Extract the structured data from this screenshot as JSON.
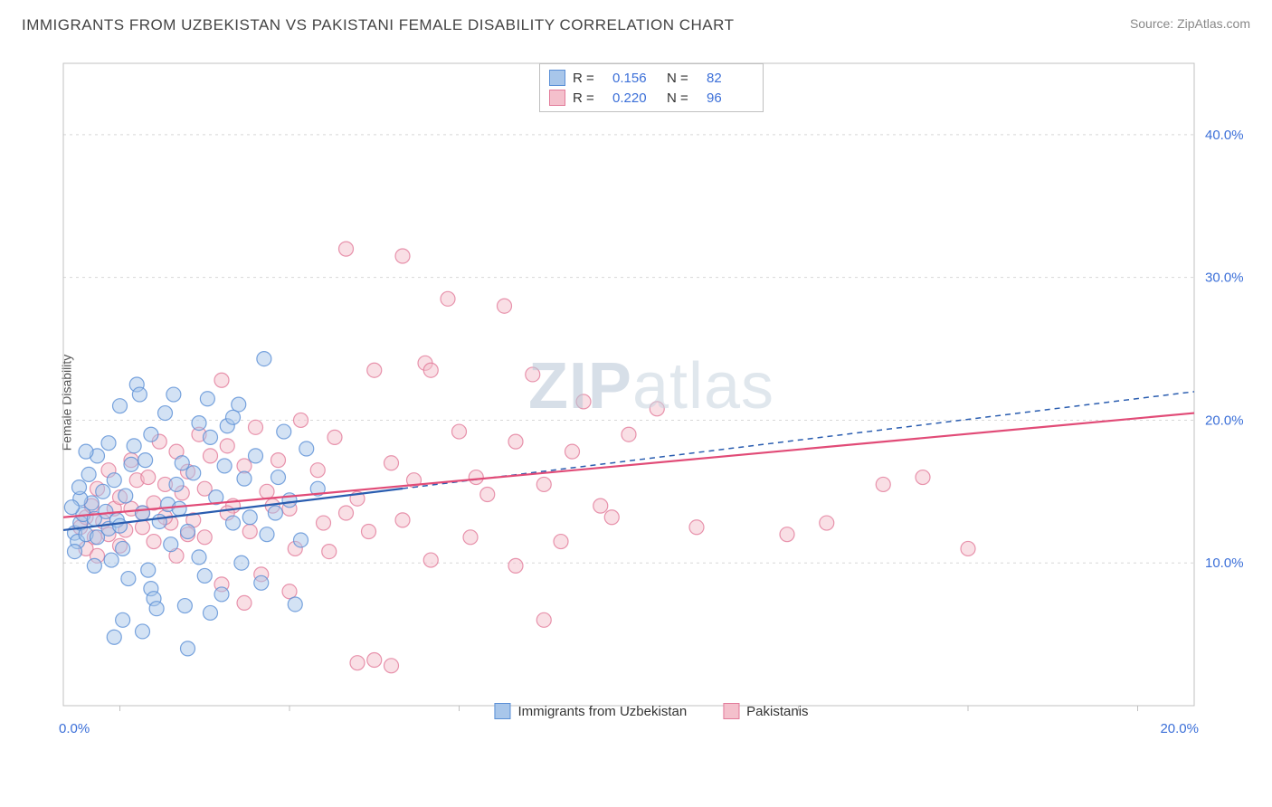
{
  "title": "IMMIGRANTS FROM UZBEKISTAN VS PAKISTANI FEMALE DISABILITY CORRELATION CHART",
  "source": "Source: ZipAtlas.com",
  "ylabel": "Female Disability",
  "watermark_a": "ZIP",
  "watermark_b": "atlas",
  "chart": {
    "type": "scatter",
    "xlim": [
      0,
      20
    ],
    "ylim": [
      0,
      45
    ],
    "x_ticks": [
      0,
      20
    ],
    "x_tick_labels": [
      "0.0%",
      "20.0%"
    ],
    "y_ticks": [
      10,
      20,
      30,
      40
    ],
    "y_tick_labels": [
      "10.0%",
      "20.0%",
      "30.0%",
      "40.0%"
    ],
    "grid_color": "#d8d8d8",
    "axis_color": "#c0c0c0",
    "background_color": "#ffffff",
    "tick_label_color": "#3b6fd8",
    "marker_radius": 8,
    "marker_opacity": 0.5
  },
  "series": [
    {
      "name": "Immigrants from Uzbekistan",
      "color_fill": "#a8c6ea",
      "color_stroke": "#5a8fd6",
      "r_value": "0.156",
      "n_value": "82",
      "trend": {
        "x1": 0,
        "y1": 12.3,
        "x2": 6.0,
        "y2": 15.0,
        "x2_ext": 20,
        "y2_ext": 22.0,
        "solid_until": 6.0,
        "color": "#2a5db0",
        "width": 2.2
      },
      "points": [
        [
          0.2,
          12.1
        ],
        [
          0.3,
          12.8
        ],
        [
          0.25,
          11.5
        ],
        [
          0.35,
          13.4
        ],
        [
          0.4,
          12.0
        ],
        [
          0.5,
          14.2
        ],
        [
          0.55,
          13.1
        ],
        [
          0.6,
          11.8
        ],
        [
          0.7,
          15.0
        ],
        [
          0.75,
          13.6
        ],
        [
          0.8,
          12.4
        ],
        [
          0.85,
          10.2
        ],
        [
          0.9,
          15.8
        ],
        [
          0.95,
          13.0
        ],
        [
          1.0,
          12.6
        ],
        [
          1.05,
          11.0
        ],
        [
          1.1,
          14.7
        ],
        [
          1.2,
          16.9
        ],
        [
          1.25,
          18.2
        ],
        [
          1.3,
          22.5
        ],
        [
          1.35,
          21.8
        ],
        [
          1.4,
          13.5
        ],
        [
          1.5,
          9.5
        ],
        [
          1.55,
          8.2
        ],
        [
          1.6,
          7.5
        ],
        [
          1.7,
          12.9
        ],
        [
          1.8,
          20.5
        ],
        [
          1.85,
          14.1
        ],
        [
          1.9,
          11.3
        ],
        [
          2.0,
          15.5
        ],
        [
          2.05,
          13.8
        ],
        [
          2.1,
          17.0
        ],
        [
          2.2,
          12.2
        ],
        [
          2.3,
          16.3
        ],
        [
          2.4,
          10.4
        ],
        [
          2.5,
          9.1
        ],
        [
          2.6,
          18.8
        ],
        [
          2.7,
          14.6
        ],
        [
          2.8,
          7.8
        ],
        [
          2.9,
          19.6
        ],
        [
          3.0,
          12.8
        ],
        [
          3.1,
          21.1
        ],
        [
          3.2,
          15.9
        ],
        [
          3.3,
          13.2
        ],
        [
          3.4,
          17.5
        ],
        [
          3.5,
          8.6
        ],
        [
          3.55,
          24.3
        ],
        [
          3.6,
          12.0
        ],
        [
          3.8,
          16.0
        ],
        [
          3.9,
          19.2
        ],
        [
          4.0,
          14.4
        ],
        [
          4.1,
          7.1
        ],
        [
          4.2,
          11.6
        ],
        [
          4.3,
          18.0
        ],
        [
          4.5,
          15.2
        ],
        [
          0.9,
          4.8
        ],
        [
          1.4,
          5.2
        ],
        [
          2.2,
          4.0
        ],
        [
          2.6,
          6.5
        ],
        [
          3.0,
          20.2
        ],
        [
          1.0,
          21.0
        ],
        [
          0.6,
          17.5
        ],
        [
          2.4,
          19.8
        ],
        [
          0.3,
          14.5
        ],
        [
          0.45,
          16.2
        ],
        [
          1.65,
          6.8
        ],
        [
          1.15,
          8.9
        ],
        [
          0.2,
          10.8
        ],
        [
          0.15,
          13.9
        ],
        [
          0.28,
          15.3
        ],
        [
          0.8,
          18.4
        ],
        [
          1.55,
          19.0
        ],
        [
          2.85,
          16.8
        ],
        [
          3.15,
          10.0
        ],
        [
          3.75,
          13.5
        ],
        [
          1.95,
          21.8
        ],
        [
          2.15,
          7.0
        ],
        [
          0.55,
          9.8
        ],
        [
          1.05,
          6.0
        ],
        [
          0.4,
          17.8
        ],
        [
          2.55,
          21.5
        ],
        [
          1.45,
          17.2
        ]
      ]
    },
    {
      "name": "Pakistanis",
      "color_fill": "#f4c0cc",
      "color_stroke": "#e27b9a",
      "r_value": "0.220",
      "n_value": "96",
      "trend": {
        "x1": 0,
        "y1": 13.2,
        "x2": 20,
        "y2": 20.5,
        "color": "#e14b77",
        "width": 2.2
      },
      "points": [
        [
          0.3,
          12.5
        ],
        [
          0.4,
          13.2
        ],
        [
          0.5,
          14.0
        ],
        [
          0.55,
          11.8
        ],
        [
          0.6,
          15.2
        ],
        [
          0.7,
          12.9
        ],
        [
          0.8,
          16.5
        ],
        [
          0.9,
          13.8
        ],
        [
          1.0,
          14.6
        ],
        [
          1.1,
          12.3
        ],
        [
          1.2,
          17.2
        ],
        [
          1.3,
          15.8
        ],
        [
          1.4,
          13.5
        ],
        [
          1.5,
          16.0
        ],
        [
          1.6,
          14.2
        ],
        [
          1.7,
          18.5
        ],
        [
          1.8,
          15.5
        ],
        [
          1.9,
          12.8
        ],
        [
          2.0,
          17.8
        ],
        [
          2.1,
          14.9
        ],
        [
          2.2,
          16.4
        ],
        [
          2.3,
          13.0
        ],
        [
          2.4,
          19.0
        ],
        [
          2.5,
          15.2
        ],
        [
          2.6,
          17.5
        ],
        [
          2.8,
          22.8
        ],
        [
          2.9,
          18.2
        ],
        [
          3.0,
          14.0
        ],
        [
          3.2,
          16.8
        ],
        [
          3.4,
          19.5
        ],
        [
          3.6,
          15.0
        ],
        [
          3.8,
          17.2
        ],
        [
          4.0,
          13.8
        ],
        [
          4.2,
          20.0
        ],
        [
          4.5,
          16.5
        ],
        [
          4.8,
          18.8
        ],
        [
          5.0,
          32.0
        ],
        [
          5.2,
          14.5
        ],
        [
          5.5,
          23.5
        ],
        [
          5.8,
          17.0
        ],
        [
          6.0,
          31.5
        ],
        [
          6.2,
          15.8
        ],
        [
          6.4,
          24.0
        ],
        [
          6.5,
          23.5
        ],
        [
          6.8,
          28.5
        ],
        [
          7.0,
          19.2
        ],
        [
          7.3,
          16.0
        ],
        [
          7.5,
          14.8
        ],
        [
          7.8,
          28.0
        ],
        [
          8.0,
          18.5
        ],
        [
          8.3,
          23.2
        ],
        [
          8.5,
          15.5
        ],
        [
          8.8,
          11.5
        ],
        [
          9.0,
          17.8
        ],
        [
          9.2,
          21.3
        ],
        [
          9.5,
          14.0
        ],
        [
          9.7,
          13.2
        ],
        [
          10.0,
          19.0
        ],
        [
          10.5,
          20.8
        ],
        [
          11.2,
          12.5
        ],
        [
          12.8,
          12.0
        ],
        [
          13.5,
          12.8
        ],
        [
          14.5,
          15.5
        ],
        [
          15.2,
          16.0
        ],
        [
          16.0,
          11.0
        ],
        [
          3.5,
          9.2
        ],
        [
          4.0,
          8.0
        ],
        [
          5.2,
          3.0
        ],
        [
          5.5,
          3.2
        ],
        [
          5.8,
          2.8
        ],
        [
          8.0,
          9.8
        ],
        [
          8.5,
          6.0
        ],
        [
          2.0,
          10.5
        ],
        [
          2.8,
          8.5
        ],
        [
          3.2,
          7.2
        ],
        [
          4.7,
          10.8
        ],
        [
          6.5,
          10.2
        ],
        [
          7.2,
          11.8
        ],
        [
          0.4,
          11.0
        ],
        [
          0.6,
          10.5
        ],
        [
          0.8,
          12.0
        ],
        [
          1.0,
          11.2
        ],
        [
          1.2,
          13.8
        ],
        [
          1.4,
          12.5
        ],
        [
          1.6,
          11.5
        ],
        [
          1.8,
          13.2
        ],
        [
          2.2,
          12.0
        ],
        [
          2.5,
          11.8
        ],
        [
          2.9,
          13.5
        ],
        [
          3.3,
          12.2
        ],
        [
          3.7,
          14.0
        ],
        [
          4.1,
          11.0
        ],
        [
          4.6,
          12.8
        ],
        [
          5.0,
          13.5
        ],
        [
          5.4,
          12.2
        ],
        [
          6.0,
          13.0
        ]
      ]
    }
  ],
  "legend_labels": {
    "r_prefix": "R =",
    "n_prefix": "N ="
  }
}
